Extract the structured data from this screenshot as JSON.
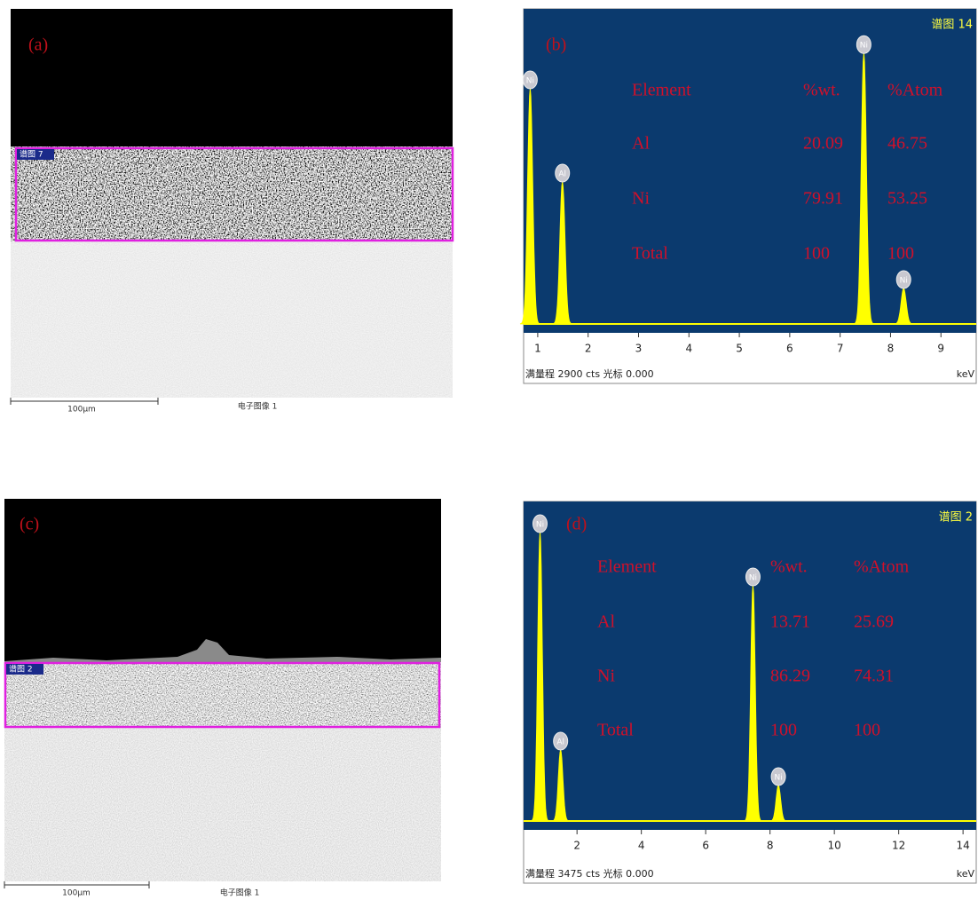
{
  "figures": [
    {
      "label": "(a)",
      "region_label": "谱图 7",
      "scale_bar": "100μm",
      "caption": "电子图像 1"
    },
    {
      "label": "(c)",
      "region_label": "谱图 2",
      "scale_bar": "100μm",
      "caption": "电子图像 1"
    }
  ],
  "chart_data": [
    {
      "type": "spectrum",
      "label": "(b)",
      "spectrum_name": "谱图 14",
      "footer": "满量程 2900 cts 光标 0.000",
      "xlabel": "keV",
      "xlim": [
        0.72,
        9.7
      ],
      "xticks": [
        1,
        2,
        3,
        4,
        5,
        6,
        7,
        8,
        9
      ],
      "ylim": [
        0,
        2900
      ],
      "color": "#ffff00",
      "peak_labels": [
        "Ni",
        "Al",
        "Ni",
        "Ni"
      ],
      "x": [
        0.85,
        1.49,
        7.47,
        8.26
      ],
      "values": [
        2165,
        1307,
        2490,
        327
      ],
      "table": {
        "header": [
          "Element",
          "%wt.",
          "%Atom"
        ],
        "rows": [
          [
            "Al",
            20.09,
            46.75
          ],
          [
            "Ni",
            79.91,
            53.25
          ],
          [
            "Total",
            100,
            100
          ]
        ]
      }
    },
    {
      "type": "spectrum",
      "label": "(d)",
      "spectrum_name": "谱图 2",
      "footer": "满量程 3475 cts 光标 0.000",
      "xlabel": "keV",
      "xlim": [
        0.34,
        14.41
      ],
      "xticks": [
        2,
        4,
        6,
        8,
        10,
        12,
        14
      ],
      "ylim": [
        0,
        3475
      ],
      "color": "#ffff00",
      "peak_labels": [
        "Ni",
        "Al",
        "Ni",
        "Ni"
      ],
      "x": [
        0.85,
        1.49,
        7.47,
        8.26
      ],
      "values": [
        3137,
        772,
        2558,
        386
      ],
      "table": {
        "header": [
          "Element",
          "%wt.",
          "%Atom"
        ],
        "rows": [
          [
            "Al",
            13.71,
            25.69
          ],
          [
            "Ni",
            86.29,
            74.31
          ],
          [
            "Total",
            100,
            100
          ]
        ]
      }
    }
  ]
}
